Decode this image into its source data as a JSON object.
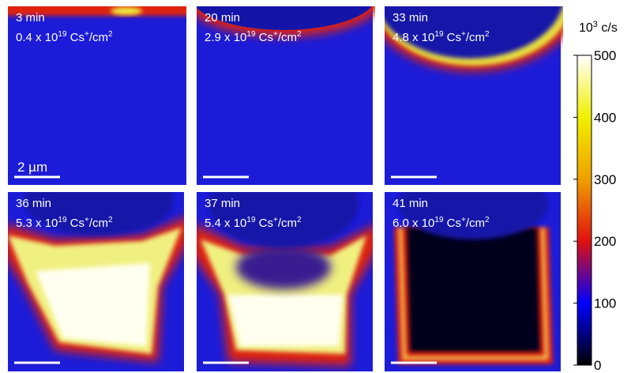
{
  "panels": [
    {
      "time": "3 min",
      "dose": "0.4"
    },
    {
      "time": "20 min",
      "dose": "2.9"
    },
    {
      "time": "33 min",
      "dose": "4.8"
    },
    {
      "time": "36 min",
      "dose": "5.3"
    },
    {
      "time": "37 min",
      "dose": "5.4"
    },
    {
      "time": "41 min",
      "dose": "6.0"
    }
  ],
  "dose_text": {
    "prefix": " x 10",
    "exponent": "19",
    "unit": " Cs",
    "ion": "+",
    "area": "/cm",
    "area_exponent": "2"
  },
  "scale_bar": "2 µm",
  "colorbar": {
    "title_base": "10",
    "title_exponent": "3",
    "title_unit": " c/s",
    "range": [
      0,
      500
    ],
    "ticks": [
      0,
      100,
      200,
      300,
      400,
      500
    ]
  }
}
